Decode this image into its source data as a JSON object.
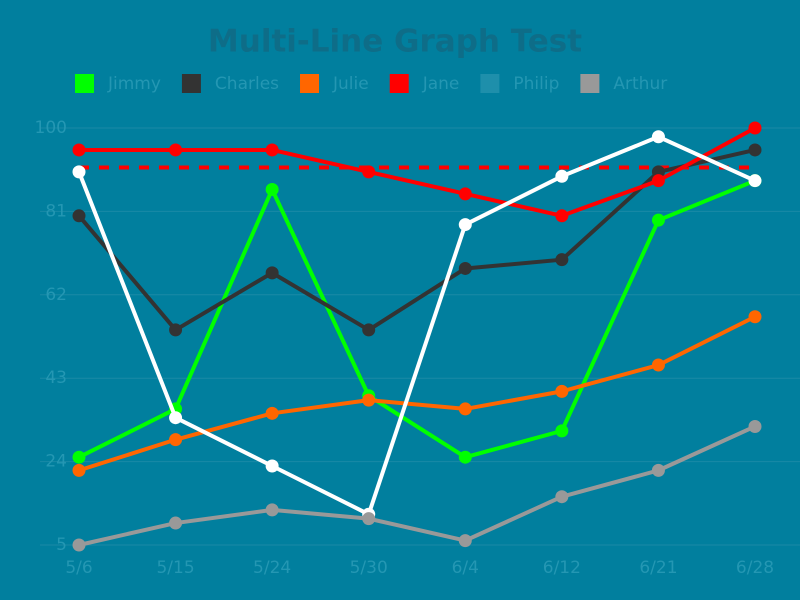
{
  "chart_data": {
    "type": "line",
    "title": "Multi-Line Graph Test",
    "categories": [
      "5/6",
      "5/15",
      "5/24",
      "5/30",
      "6/4",
      "6/12",
      "6/21",
      "6/28"
    ],
    "series": [
      {
        "name": "Jimmy",
        "color": "#00ff00",
        "values": [
          25,
          36,
          86,
          39,
          25,
          31,
          79,
          88
        ]
      },
      {
        "name": "Charles",
        "color": "#333333",
        "values": [
          80,
          54,
          67,
          54,
          68,
          70,
          90,
          95
        ]
      },
      {
        "name": "Julie",
        "color": "#ff6600",
        "values": [
          22,
          29,
          35,
          38,
          36,
          40,
          46,
          57
        ]
      },
      {
        "name": "Jane",
        "color": "#ff0000",
        "values": [
          95,
          95,
          95,
          90,
          85,
          80,
          88,
          100
        ]
      },
      {
        "name": "Philip",
        "color": "#ffffff",
        "legend_color": "#1e8fab",
        "values": [
          90,
          34,
          23,
          12,
          78,
          89,
          98,
          88
        ]
      },
      {
        "name": "Arthur",
        "color": "#999999",
        "values": [
          5,
          10,
          13,
          11,
          6,
          16,
          22,
          32
        ]
      }
    ],
    "reference_line": {
      "value": 91,
      "color": "#ff0000",
      "dashed": true
    },
    "ylim": [
      5,
      100
    ],
    "yticks": [
      5,
      24,
      43,
      62,
      81,
      100
    ],
    "grid": true
  }
}
